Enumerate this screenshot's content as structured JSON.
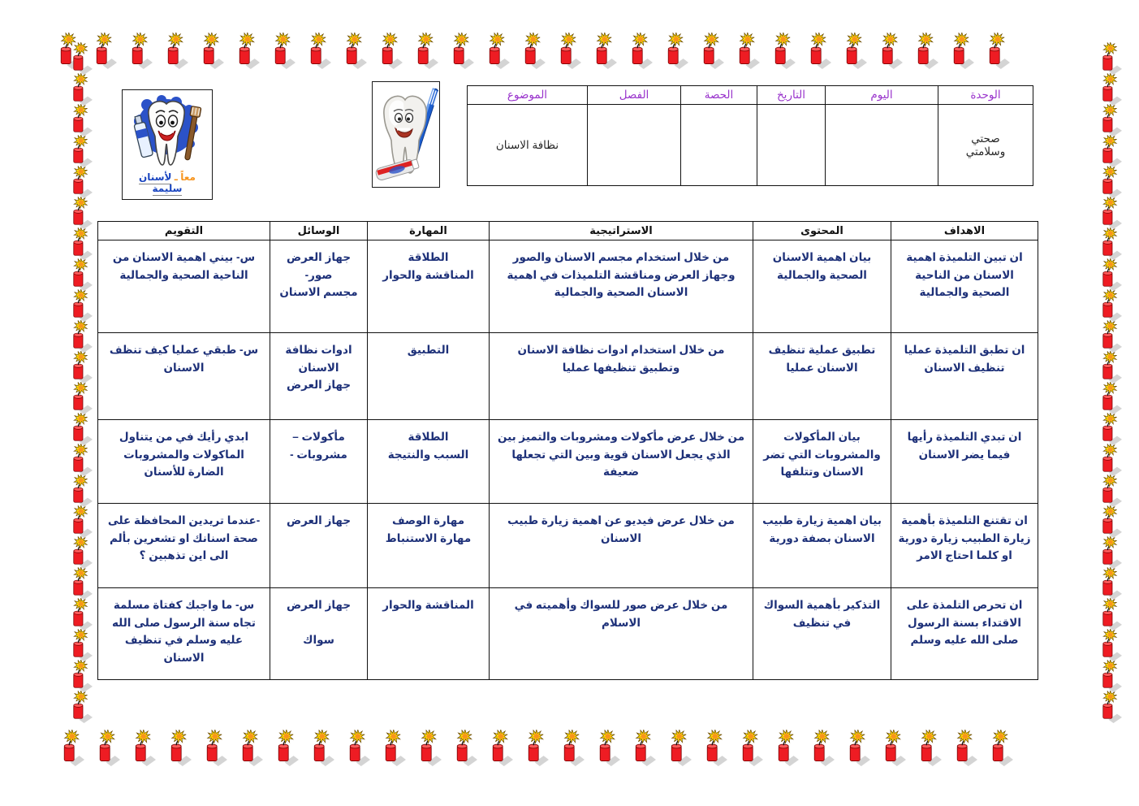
{
  "decor": {
    "icon": "firecracker-star-icon",
    "colors": {
      "body_red": "#ee1c23",
      "star_yellow": "#ffe400",
      "star_orange": "#f7941d",
      "shadow_gray": "#c9c9c9"
    },
    "top_count": 27,
    "bottom_count": 27,
    "left_count": 22,
    "right_count": 22
  },
  "badge": {
    "caption_prefix": "معاً ـ",
    "caption_main": "لأسنان سليمة"
  },
  "info_table": {
    "headers": [
      "الموضوع",
      "الفصل",
      "الحصة",
      "التاريخ",
      "اليوم",
      "الوحدة"
    ],
    "subject_value": "نظافة الاسنان",
    "class_value": "",
    "period_value": "",
    "date_value": "",
    "day_value": "",
    "unit_value": "صحتي\nوسلامتي"
  },
  "lesson_table": {
    "headers": [
      "التقويم",
      "الوسائل",
      "المهارة",
      "الاستراتيجية",
      "المحتوى",
      "الاهداف"
    ],
    "rows": [
      {
        "evaluation": "س- بيني اهمية الاسنان من الناحية الصحية والجمالية",
        "tools": "جهاز العرض\nصور-\nمجسم الاسنان",
        "skill": "الطلاقة\nالمناقشة والحوار",
        "strategy": "من خلال استخدام مجسم الاسنان والصور وجهاز العرض ومناقشة التلميذات في اهمية الاسنان الصحية والجمالية",
        "content": "بيان اهمية الاسنان الصحية والجمالية",
        "objectives": "ان تبين التلميذة اهمية الاسنان من الناحية الصحية والجمالية"
      },
      {
        "evaluation": "س- طبقي عمليا كيف تنظف الاسنان",
        "tools": "ادوات نظافة الاسنان\nجهاز العرض",
        "skill": "التطبيق",
        "strategy": "من خلال استخدام ادوات نظافة الاسنان وتطبيق تنظيفها عمليا",
        "content": "تطبيق عملية تنظيف الاسنان عمليا",
        "objectives": "ان تطبق التلميذة عمليا تنظيف الاسنان"
      },
      {
        "evaluation": "ابدي رأيك في من يتناول الماكولات والمشروبات الضارة للأسنان",
        "tools": "مأكولات –\nمشروبات -",
        "skill": "الطلاقة\nالسبب والنتيجة",
        "strategy": "من خلال عرض مأكولات ومشروبات والتميز بين الذي يجعل الاسنان قوية وبين التي تجعلها ضعيفة",
        "content": "بيان المأكولات والمشروبات التي تضر الاسنان وتتلفها",
        "objectives": "ان تبدي التلميذة رأيها فيما يضر الاسنان"
      },
      {
        "evaluation": "-عندما تريدين المحافظة على صحة اسنانك او تشعرين بألم الى اين تذهبين ؟",
        "tools": "جهاز العرض",
        "skill": "مهارة الوصف\nمهارة الاستنباط",
        "strategy": "من خلال عرض فيديو عن اهمية زيارة طبيب الاسنان",
        "content": "بيان اهمية زيارة طبيب الاسنان بصفة دورية",
        "objectives": "ان تقتنع التلميذة بأهمية زيارة الطبيب زيارة دورية او كلما احتاج الامر"
      },
      {
        "evaluation": "س- ما واجبك كفتاة مسلمة تجاه سنة الرسول صلى الله عليه وسلم في تنظيف الاسنان",
        "tools": "جهاز العرض\n\nسواك",
        "skill": "المناقشة والحوار",
        "strategy": "من خلال عرض صور للسواك وأهميته في الاسلام",
        "content": "التذكير بأهمية السواك في تنظيف",
        "objectives": "ان تحرص التلمذة على الاقتداء بسنة الرسول صلى الله عليه وسلم"
      }
    ]
  }
}
